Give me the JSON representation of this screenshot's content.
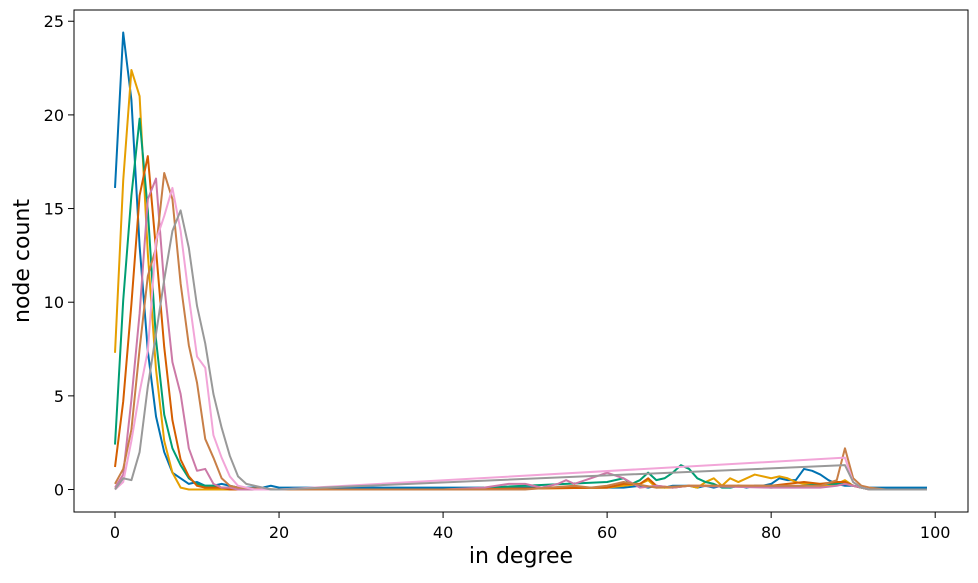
{
  "chart_data": {
    "type": "line",
    "title": "",
    "xlabel": "in degree",
    "ylabel": "node count",
    "xlim": [
      -5,
      104
    ],
    "ylim": [
      -1.2,
      25.6
    ],
    "xticks": [
      0,
      20,
      40,
      60,
      80,
      100
    ],
    "yticks": [
      0,
      5,
      10,
      15,
      20,
      25
    ],
    "grid": false,
    "legend": "none",
    "series": [
      {
        "color": "#0072b2",
        "x": [
          0,
          1,
          2,
          3,
          4,
          5,
          6,
          7,
          8,
          9,
          10,
          11,
          12,
          13,
          14,
          15,
          16,
          17,
          18,
          19,
          20,
          40,
          60,
          62,
          64,
          65,
          66,
          67,
          68,
          69,
          70,
          71,
          72,
          73,
          74,
          75,
          76,
          77,
          78,
          79,
          80,
          81,
          82,
          83,
          84,
          85,
          86,
          87,
          88,
          89,
          90,
          91,
          92,
          94,
          96,
          98,
          99
        ],
        "y": [
          16.1,
          24.4,
          20.8,
          13.0,
          7.4,
          3.9,
          2.0,
          0.9,
          0.6,
          0.3,
          0.4,
          0.2,
          0.2,
          0.3,
          0.2,
          0.1,
          0.1,
          0.1,
          0.1,
          0.2,
          0.1,
          0.1,
          0.1,
          0.1,
          0.2,
          0.1,
          0.2,
          0.1,
          0.2,
          0.2,
          0.2,
          0.1,
          0.2,
          0.1,
          0.2,
          0.1,
          0.2,
          0.1,
          0.2,
          0.2,
          0.3,
          0.6,
          0.5,
          0.5,
          1.1,
          1.0,
          0.8,
          0.5,
          0.3,
          0.2,
          0.2,
          0.1,
          0.1,
          0.1,
          0.1,
          0.1,
          0.1
        ]
      },
      {
        "color": "#e69f00",
        "x": [
          0,
          1,
          2,
          3,
          4,
          5,
          6,
          7,
          8,
          9,
          10,
          11,
          12,
          13,
          14,
          15,
          20,
          40,
          60,
          64,
          65,
          66,
          68,
          70,
          71,
          72,
          73,
          74,
          75,
          76,
          77,
          78,
          79,
          80,
          81,
          82,
          83,
          84,
          85,
          86,
          87,
          88,
          89,
          90,
          91,
          92,
          94,
          96,
          98,
          99
        ],
        "y": [
          7.3,
          16.5,
          22.4,
          21.0,
          12.6,
          6.4,
          2.6,
          0.9,
          0.1,
          0.0,
          0.0,
          0.0,
          0.0,
          0.0,
          0.0,
          0.0,
          0.0,
          0.0,
          0.1,
          0.3,
          0.5,
          0.1,
          0.1,
          0.2,
          0.1,
          0.4,
          0.6,
          0.2,
          0.6,
          0.4,
          0.6,
          0.8,
          0.7,
          0.6,
          0.7,
          0.6,
          0.4,
          0.3,
          0.3,
          0.2,
          0.2,
          0.3,
          0.5,
          0.2,
          0.1,
          0.0,
          0.0,
          0.0,
          0.0,
          0.0
        ]
      },
      {
        "color": "#009e73",
        "x": [
          0,
          1,
          2,
          3,
          4,
          5,
          6,
          7,
          8,
          9,
          10,
          11,
          12,
          13,
          14,
          15,
          20,
          40,
          60,
          62,
          63,
          64,
          65,
          66,
          67,
          68,
          69,
          70,
          71,
          72,
          73,
          74,
          75,
          76,
          80,
          84,
          86,
          88,
          89,
          90,
          91,
          92,
          94,
          96,
          98,
          99
        ],
        "y": [
          2.4,
          10.1,
          15.7,
          19.8,
          14.9,
          8.0,
          4.0,
          2.2,
          1.3,
          0.6,
          0.3,
          0.2,
          0.2,
          0.1,
          0.1,
          0.0,
          0.0,
          0.0,
          0.4,
          0.6,
          0.3,
          0.5,
          0.9,
          0.5,
          0.6,
          0.9,
          1.3,
          1.1,
          0.6,
          0.4,
          0.3,
          0.1,
          0.1,
          0.2,
          0.1,
          0.2,
          0.3,
          0.3,
          0.4,
          0.2,
          0.1,
          0.0,
          0.0,
          0.0,
          0.0,
          0.0
        ]
      },
      {
        "color": "#d55e00",
        "x": [
          0,
          1,
          2,
          3,
          4,
          5,
          6,
          7,
          8,
          9,
          10,
          11,
          12,
          13,
          14,
          20,
          40,
          60,
          62,
          64,
          65,
          66,
          68,
          70,
          80,
          82,
          84,
          86,
          88,
          89,
          90,
          91,
          92,
          94,
          96,
          98,
          99
        ],
        "y": [
          1.2,
          4.7,
          9.9,
          15.7,
          17.8,
          12.8,
          7.6,
          3.7,
          1.6,
          0.7,
          0.2,
          0.1,
          0.1,
          0.1,
          0.0,
          0.0,
          0.0,
          0.1,
          0.3,
          0.3,
          0.6,
          0.2,
          0.1,
          0.2,
          0.2,
          0.3,
          0.4,
          0.3,
          0.4,
          0.4,
          0.2,
          0.1,
          0.0,
          0.0,
          0.0,
          0.0,
          0.0
        ]
      },
      {
        "color": "#cc79a7",
        "x": [
          0,
          1,
          2,
          3,
          4,
          5,
          6,
          7,
          8,
          9,
          10,
          11,
          12,
          13,
          14,
          15,
          20,
          40,
          45,
          48,
          50,
          52,
          54,
          55,
          56,
          58,
          60,
          62,
          64,
          66,
          68,
          70,
          80,
          86,
          88,
          89,
          90,
          91,
          92,
          94,
          96,
          98,
          99
        ],
        "y": [
          0.1,
          0.8,
          4.8,
          9.4,
          15.5,
          16.6,
          10.9,
          6.8,
          5.1,
          2.2,
          1.0,
          1.1,
          0.3,
          0.1,
          0.1,
          0.0,
          0.0,
          0.0,
          0.1,
          0.3,
          0.3,
          0.1,
          0.3,
          0.5,
          0.3,
          0.6,
          0.9,
          0.6,
          0.1,
          0.2,
          0.1,
          0.2,
          0.1,
          0.1,
          0.2,
          0.3,
          0.2,
          0.1,
          0.0,
          0.0,
          0.0,
          0.0,
          0.0
        ]
      },
      {
        "color": "#c87f47",
        "x": [
          0,
          1,
          2,
          3,
          4,
          5,
          6,
          7,
          8,
          9,
          10,
          11,
          12,
          13,
          14,
          15,
          20,
          40,
          50,
          56,
          58,
          60,
          62,
          66,
          70,
          80,
          86,
          88,
          89,
          90,
          91,
          92,
          94,
          96,
          98,
          99
        ],
        "y": [
          0.3,
          1.1,
          3.2,
          7.5,
          11.4,
          12.9,
          16.9,
          15.5,
          11.0,
          7.7,
          5.7,
          2.7,
          1.7,
          0.6,
          0.2,
          0.1,
          0.0,
          0.0,
          0.0,
          0.2,
          0.1,
          0.2,
          0.4,
          0.1,
          0.2,
          0.2,
          0.2,
          0.5,
          2.2,
          0.6,
          0.2,
          0.1,
          0.0,
          0.0,
          0.0,
          0.0
        ]
      },
      {
        "color": "#f2a5d8",
        "x": [
          0,
          1,
          2,
          3,
          4,
          5,
          6,
          7,
          8,
          9,
          10,
          11,
          12,
          13,
          14,
          15,
          16,
          17,
          18,
          19,
          20,
          89,
          90,
          91,
          92,
          94,
          96,
          98,
          99
        ],
        "y": [
          0.0,
          0.4,
          2.6,
          5.2,
          7.4,
          13.3,
          14.6,
          16.1,
          13.8,
          10.3,
          7.1,
          6.5,
          2.9,
          1.7,
          0.7,
          0.2,
          0.1,
          0.0,
          0.0,
          0.0,
          0.0,
          1.7,
          0.4,
          0.1,
          0.0,
          0.0,
          0.0,
          0.0,
          0.0
        ]
      },
      {
        "color": "#999999",
        "x": [
          0,
          1,
          2,
          3,
          4,
          5,
          6,
          7,
          8,
          9,
          10,
          11,
          12,
          13,
          14,
          15,
          16,
          17,
          18,
          19,
          20,
          89,
          90,
          91,
          92,
          94,
          96,
          98,
          99
        ],
        "y": [
          0.0,
          0.6,
          0.5,
          2.0,
          5.5,
          8.3,
          11.2,
          13.8,
          14.9,
          12.9,
          9.8,
          7.8,
          5.1,
          3.3,
          1.8,
          0.7,
          0.3,
          0.2,
          0.1,
          0.0,
          0.0,
          1.3,
          0.4,
          0.1,
          0.0,
          0.0,
          0.0,
          0.0,
          0.0
        ]
      }
    ]
  }
}
